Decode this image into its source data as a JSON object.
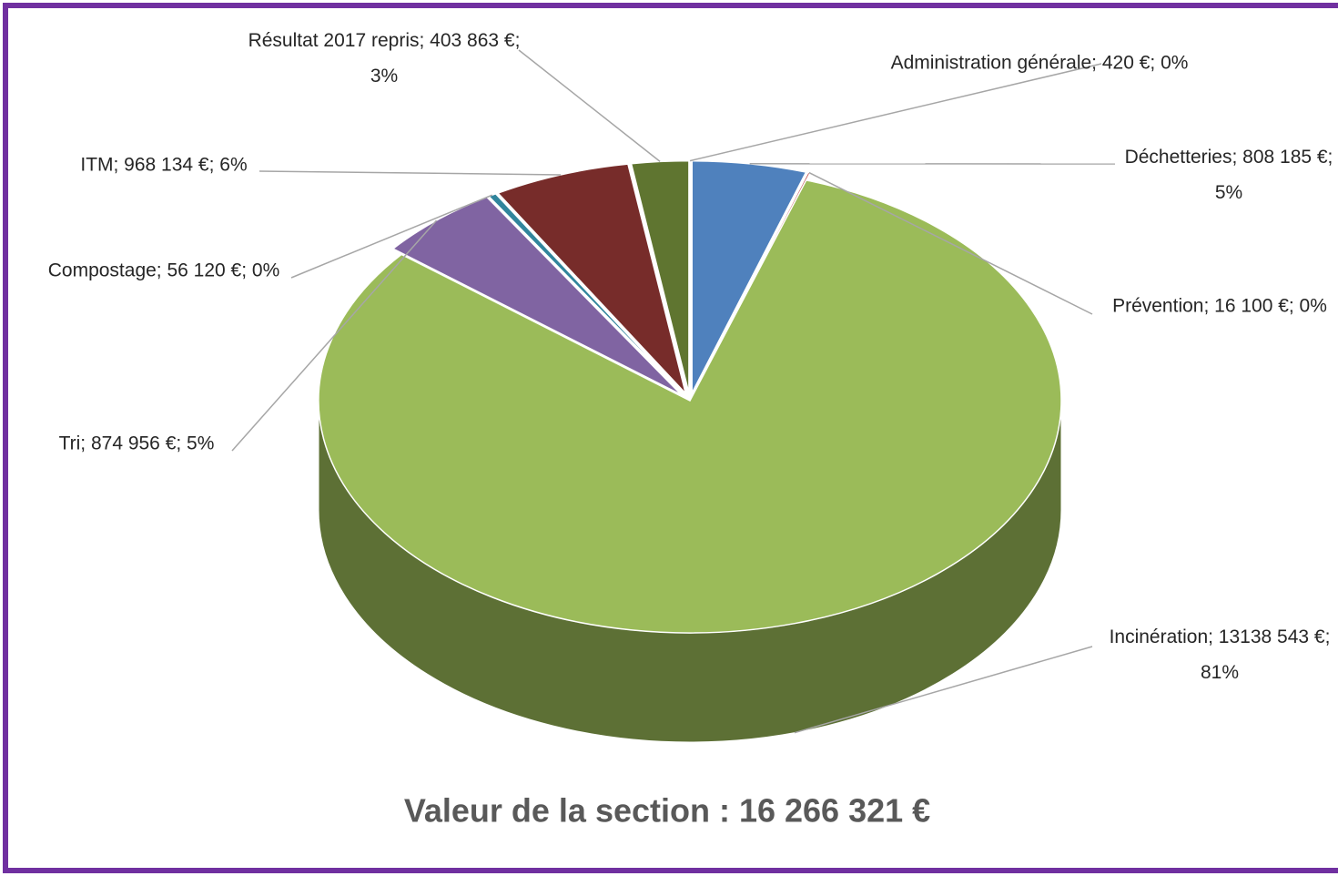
{
  "chart_data": {
    "type": "pie",
    "title": "Valeur de la section : 16 266 321 €",
    "categories": [
      "Administration générale",
      "Déchetteries",
      "Prévention",
      "Incinération",
      "Tri",
      "Compostage",
      "ITM",
      "Résultat 2017 repris"
    ],
    "values": [
      420,
      808185,
      16100,
      13138543,
      874956,
      56120,
      968134,
      403863
    ],
    "value_labels": [
      "Administration générale;  420 €; 0%",
      "Déchetteries; 808 185 €; 5%",
      "Prévention; 16 100 €; 0%",
      "Incinération; 13138 543 €; 81%",
      "Tri; 874 956 €; 5%",
      "Compostage; 56 120 €; 0%",
      "ITM; 968 134 €; 6%",
      "Résultat 2017 repris; 403 863 €; 3%"
    ],
    "colors": [
      "#8db3e2",
      "#4f81bd",
      "#c0504d",
      "#9bbb59",
      "#8064a2",
      "#31859c",
      "#772c2a",
      "#5f7530"
    ]
  }
}
